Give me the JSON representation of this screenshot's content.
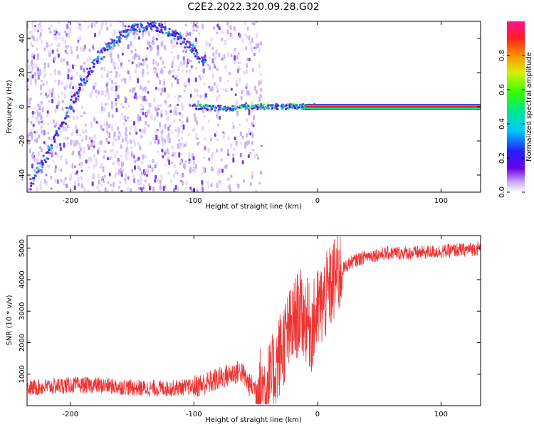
{
  "title": "C2E2.2022.320.09.28.G02",
  "colors": {
    "snr_line": "#ee3333",
    "sweep": "#6a2cd8",
    "carrier": "#ff2020"
  },
  "chart_data": [
    {
      "type": "heatmap",
      "xlabel": "Height of straight line (km)",
      "ylabel": "Frequency (Hz)",
      "xlim": [
        -235,
        132
      ],
      "ylim": [
        -50,
        50
      ],
      "xticks": [
        -200,
        -100,
        0,
        100
      ],
      "yticks": [
        -40,
        -20,
        0,
        20,
        40
      ],
      "colorbar": {
        "label": "Normalized spectral amplitude",
        "range": [
          0,
          1
        ],
        "ticks": [
          0.0,
          0.2,
          0.4,
          0.6,
          0.8
        ],
        "tick_labels": [
          "0.0",
          "0.2",
          "0.4",
          "0.6",
          "0.8"
        ]
      },
      "features": [
        {
          "kind": "curved-trace",
          "points": [
            [
              -232,
              -46
            ],
            [
              -210,
              -15
            ],
            [
              -190,
              15
            ],
            [
              -170,
              35
            ],
            [
              -150,
              46
            ],
            [
              -130,
              47
            ],
            [
              -110,
              40
            ],
            [
              -90,
              25
            ]
          ]
        },
        {
          "kind": "converging-trace",
          "points": [
            [
              -100,
              0
            ],
            [
              -75,
              -1
            ],
            [
              -50,
              0
            ],
            [
              -30,
              0
            ],
            [
              -15,
              0
            ],
            [
              0,
              0
            ]
          ]
        },
        {
          "kind": "carrier-line",
          "from": -10,
          "to": 132,
          "frequency": 0
        }
      ]
    },
    {
      "type": "line",
      "xlabel": "Height of straight line (km)",
      "ylabel": "SNR (10 * v/v)",
      "xlim": [
        -235,
        132
      ],
      "ylim": [
        0,
        5400
      ],
      "xticks": [
        -200,
        -100,
        0,
        100
      ],
      "yticks": [
        1000,
        2000,
        3000,
        4000,
        5000
      ],
      "series": [
        {
          "x": [
            -235,
            -220,
            -200,
            -180,
            -160,
            -140,
            -120,
            -100,
            -90,
            -80,
            -70,
            -62,
            -55,
            -45,
            -38,
            -30,
            -25,
            -20,
            -15,
            -10,
            -5,
            0,
            5,
            10,
            15,
            20,
            25,
            30,
            40,
            50,
            60,
            80,
            100,
            120,
            132
          ],
          "y": [
            550,
            600,
            650,
            650,
            600,
            550,
            550,
            600,
            700,
            850,
            1000,
            1100,
            650,
            500,
            700,
            1700,
            2200,
            2500,
            3000,
            2800,
            2400,
            3000,
            3300,
            3700,
            4100,
            4300,
            4500,
            4600,
            4750,
            4800,
            4850,
            4850,
            4900,
            4950,
            5000
          ]
        }
      ]
    }
  ]
}
